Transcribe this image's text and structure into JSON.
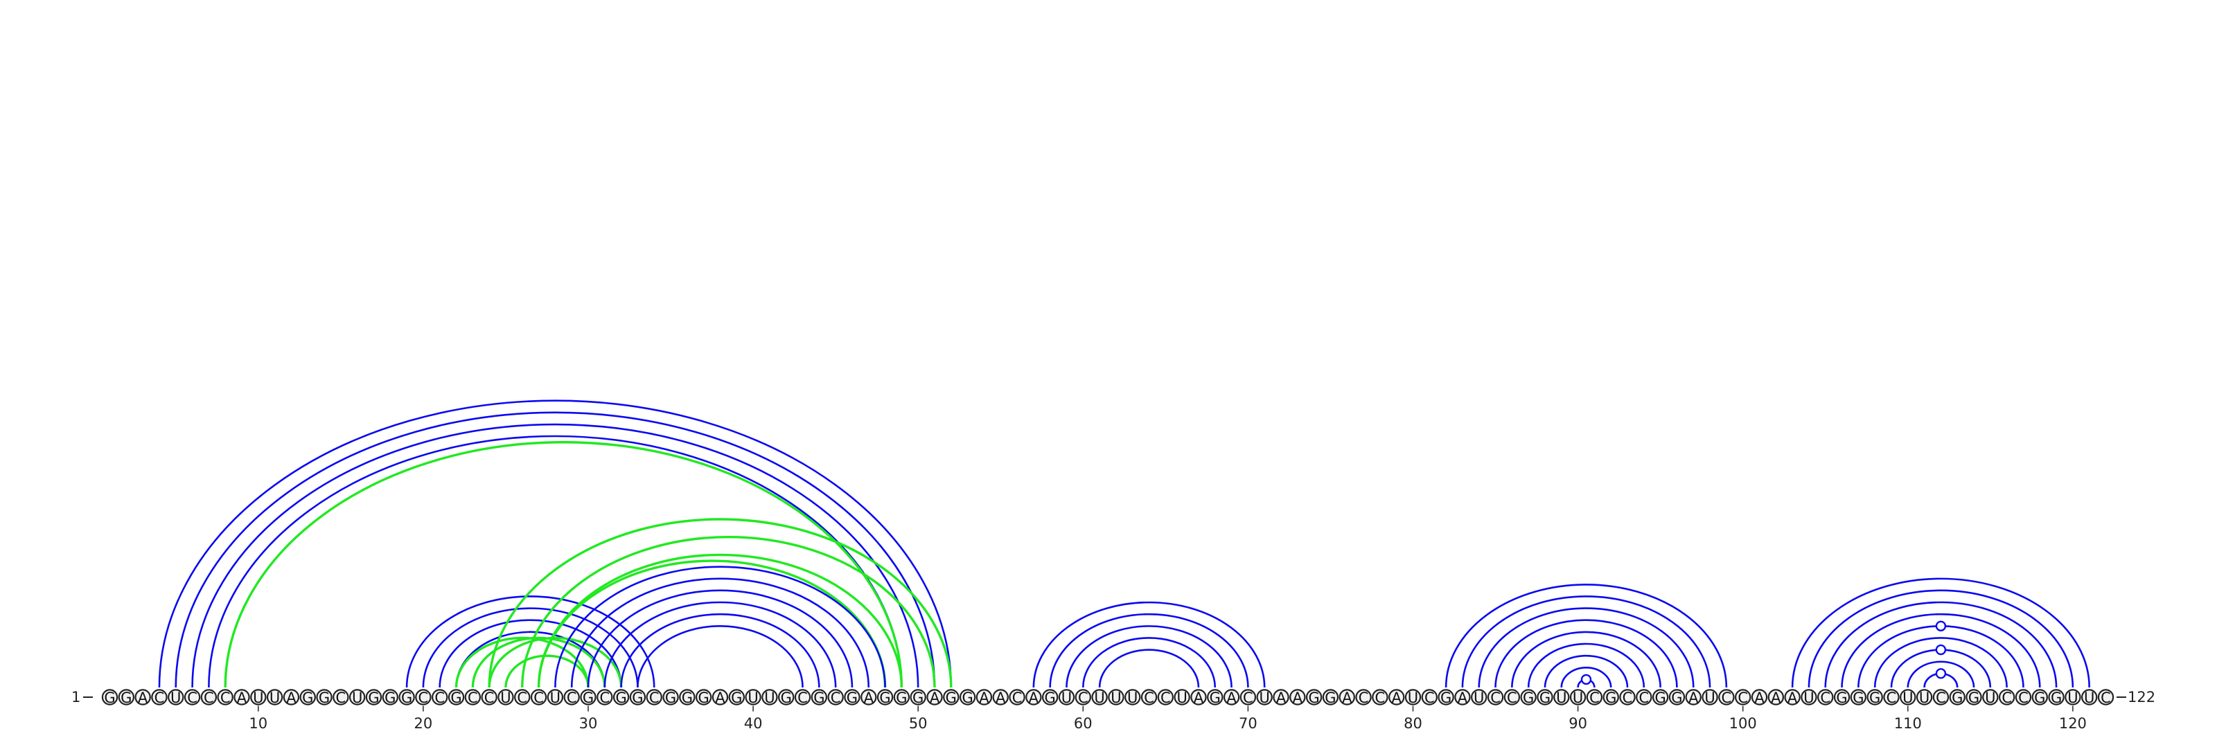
{
  "sequence": "GGACUCCCAUUAGGCUGGGCCGCCUCCUCGCGGCGGGAGUUGCGCGAGGGAGGAACAGUCUUUCCUAGACUAAGGACCAUCGAUCCGGUUCGCCGGAUCCAAAUCGGGCUUCGGUCCGGUUC",
  "start_label": "1",
  "end_label": "122",
  "tick_labels": [
    "10",
    "20",
    "30",
    "40",
    "50",
    "60",
    "70",
    "80",
    "90",
    "100",
    "110",
    "120"
  ],
  "colors": {
    "blue": "#0a0af0",
    "green": "#22e822",
    "nucleotide_fill": "#f2f2f2"
  },
  "arcs": [
    {
      "i": 4,
      "j": 52,
      "color": "blue"
    },
    {
      "i": 5,
      "j": 51,
      "color": "blue"
    },
    {
      "i": 6,
      "j": 50,
      "color": "blue"
    },
    {
      "i": 7,
      "j": 49,
      "color": "blue"
    },
    {
      "i": 8,
      "j": 49,
      "color": "green"
    },
    {
      "i": 19,
      "j": 34,
      "color": "blue"
    },
    {
      "i": 20,
      "j": 33,
      "color": "blue"
    },
    {
      "i": 21,
      "j": 32,
      "color": "blue"
    },
    {
      "i": 22,
      "j": 31,
      "color": "blue"
    },
    {
      "i": 22,
      "j": 30,
      "color": "green"
    },
    {
      "i": 23,
      "j": 31,
      "color": "green"
    },
    {
      "i": 24,
      "j": 32,
      "color": "green"
    },
    {
      "i": 25,
      "j": 30,
      "color": "green"
    },
    {
      "i": 24,
      "j": 52,
      "color": "green"
    },
    {
      "i": 26,
      "j": 51,
      "color": "green"
    },
    {
      "i": 27,
      "j": 49,
      "color": "green"
    },
    {
      "i": 27,
      "j": 48,
      "color": "green"
    },
    {
      "i": 28,
      "j": 48,
      "color": "blue"
    },
    {
      "i": 29,
      "j": 47,
      "color": "blue"
    },
    {
      "i": 30,
      "j": 46,
      "color": "blue"
    },
    {
      "i": 31,
      "j": 45,
      "color": "blue"
    },
    {
      "i": 32,
      "j": 44,
      "color": "blue"
    },
    {
      "i": 33,
      "j": 43,
      "color": "blue"
    },
    {
      "i": 57,
      "j": 71,
      "color": "blue"
    },
    {
      "i": 58,
      "j": 70,
      "color": "blue"
    },
    {
      "i": 59,
      "j": 69,
      "color": "blue"
    },
    {
      "i": 60,
      "j": 68,
      "color": "blue"
    },
    {
      "i": 61,
      "j": 67,
      "color": "blue"
    },
    {
      "i": 82,
      "j": 99,
      "color": "blue"
    },
    {
      "i": 83,
      "j": 98,
      "color": "blue"
    },
    {
      "i": 84,
      "j": 97,
      "color": "blue"
    },
    {
      "i": 85,
      "j": 96,
      "color": "blue"
    },
    {
      "i": 86,
      "j": 95,
      "color": "blue"
    },
    {
      "i": 87,
      "j": 94,
      "color": "blue"
    },
    {
      "i": 88,
      "j": 93,
      "color": "blue"
    },
    {
      "i": 89,
      "j": 92,
      "color": "blue"
    },
    {
      "i": 90,
      "j": 91,
      "color": "blue"
    },
    {
      "i": 103,
      "j": 121,
      "color": "blue"
    },
    {
      "i": 104,
      "j": 120,
      "color": "blue"
    },
    {
      "i": 105,
      "j": 119,
      "color": "blue"
    },
    {
      "i": 106,
      "j": 118,
      "color": "blue"
    },
    {
      "i": 107,
      "j": 117,
      "color": "blue"
    },
    {
      "i": 108,
      "j": 116,
      "color": "blue"
    },
    {
      "i": 109,
      "j": 115,
      "color": "blue"
    },
    {
      "i": 110,
      "j": 114,
      "color": "blue"
    },
    {
      "i": 111,
      "j": 113,
      "color": "blue"
    }
  ],
  "arc_markers": [
    {
      "i": 90,
      "j": 91
    },
    {
      "i": 111,
      "j": 113
    },
    {
      "i": 109,
      "j": 115
    },
    {
      "i": 107,
      "j": 117
    }
  ]
}
